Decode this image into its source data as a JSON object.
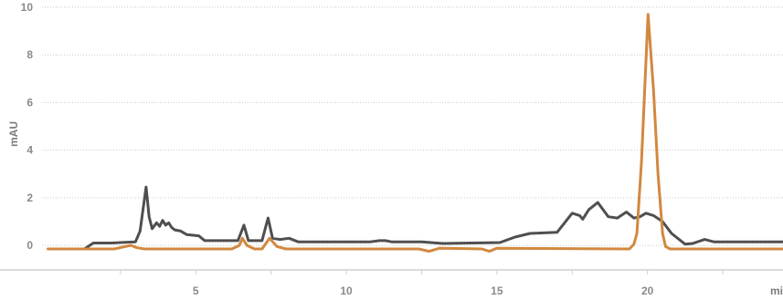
{
  "chart_data": {
    "type": "line",
    "title": "",
    "xlabel": "mi",
    "ylabel": "mAU",
    "xlim": [
      -1.5,
      24.5
    ],
    "ylim": [
      -0.8,
      10.3
    ],
    "grid": true,
    "legend": "none",
    "x_ticks": [
      5,
      10,
      15,
      20
    ],
    "x_tick_labels": [
      "5",
      "10",
      "15",
      "20"
    ],
    "y_ticks": [
      0,
      2,
      4,
      6,
      8,
      10
    ],
    "y_tick_labels": [
      "0",
      "2",
      "4",
      "6",
      "8",
      "10"
    ],
    "series": [
      {
        "color": "#4f4f4f",
        "points": [
          [
            0.1,
            -0.15
          ],
          [
            1.3,
            -0.15
          ],
          [
            1.6,
            0.1
          ],
          [
            2.2,
            0.1
          ],
          [
            2.5,
            0.12
          ],
          [
            3.0,
            0.15
          ],
          [
            3.15,
            0.6
          ],
          [
            3.35,
            2.45
          ],
          [
            3.45,
            1.2
          ],
          [
            3.55,
            0.7
          ],
          [
            3.7,
            0.95
          ],
          [
            3.8,
            0.8
          ],
          [
            3.9,
            1.05
          ],
          [
            4.0,
            0.85
          ],
          [
            4.1,
            0.95
          ],
          [
            4.2,
            0.75
          ],
          [
            4.3,
            0.65
          ],
          [
            4.5,
            0.6
          ],
          [
            4.7,
            0.45
          ],
          [
            5.1,
            0.4
          ],
          [
            5.3,
            0.2
          ],
          [
            6.4,
            0.2
          ],
          [
            6.6,
            0.85
          ],
          [
            6.75,
            0.2
          ],
          [
            7.2,
            0.2
          ],
          [
            7.4,
            1.15
          ],
          [
            7.55,
            0.3
          ],
          [
            7.8,
            0.25
          ],
          [
            8.1,
            0.3
          ],
          [
            8.4,
            0.15
          ],
          [
            10.8,
            0.15
          ],
          [
            11.1,
            0.2
          ],
          [
            11.3,
            0.2
          ],
          [
            11.5,
            0.15
          ],
          [
            12.5,
            0.15
          ],
          [
            13.2,
            0.08
          ],
          [
            15.1,
            0.12
          ],
          [
            15.6,
            0.35
          ],
          [
            16.1,
            0.5
          ],
          [
            17.0,
            0.55
          ],
          [
            17.5,
            1.35
          ],
          [
            17.75,
            1.25
          ],
          [
            17.85,
            1.1
          ],
          [
            18.05,
            1.5
          ],
          [
            18.35,
            1.8
          ],
          [
            18.7,
            1.2
          ],
          [
            19.0,
            1.15
          ],
          [
            19.3,
            1.4
          ],
          [
            19.55,
            1.15
          ],
          [
            19.75,
            1.2
          ],
          [
            19.95,
            1.35
          ],
          [
            20.2,
            1.25
          ],
          [
            20.5,
            1.0
          ],
          [
            20.8,
            0.5
          ],
          [
            21.25,
            0.05
          ],
          [
            21.5,
            0.08
          ],
          [
            21.9,
            0.25
          ],
          [
            22.2,
            0.15
          ],
          [
            24.5,
            0.15
          ]
        ]
      },
      {
        "color": "#d2883f",
        "points": [
          [
            0.1,
            -0.15
          ],
          [
            2.3,
            -0.15
          ],
          [
            2.65,
            -0.05
          ],
          [
            2.85,
            0.0
          ],
          [
            3.05,
            -0.1
          ],
          [
            3.3,
            -0.15
          ],
          [
            6.2,
            -0.15
          ],
          [
            6.45,
            0.0
          ],
          [
            6.55,
            0.3
          ],
          [
            6.7,
            0.0
          ],
          [
            6.95,
            -0.15
          ],
          [
            7.2,
            -0.15
          ],
          [
            7.45,
            0.3
          ],
          [
            7.7,
            -0.05
          ],
          [
            8.0,
            -0.15
          ],
          [
            12.4,
            -0.15
          ],
          [
            12.75,
            -0.25
          ],
          [
            13.1,
            -0.12
          ],
          [
            14.5,
            -0.15
          ],
          [
            14.75,
            -0.25
          ],
          [
            15.0,
            -0.12
          ],
          [
            19.4,
            -0.15
          ],
          [
            19.55,
            0.05
          ],
          [
            19.65,
            0.5
          ],
          [
            19.8,
            3.5
          ],
          [
            20.02,
            9.7
          ],
          [
            20.2,
            6.5
          ],
          [
            20.35,
            3.0
          ],
          [
            20.5,
            0.5
          ],
          [
            20.6,
            -0.05
          ],
          [
            20.75,
            -0.15
          ],
          [
            24.5,
            -0.15
          ]
        ]
      }
    ]
  }
}
